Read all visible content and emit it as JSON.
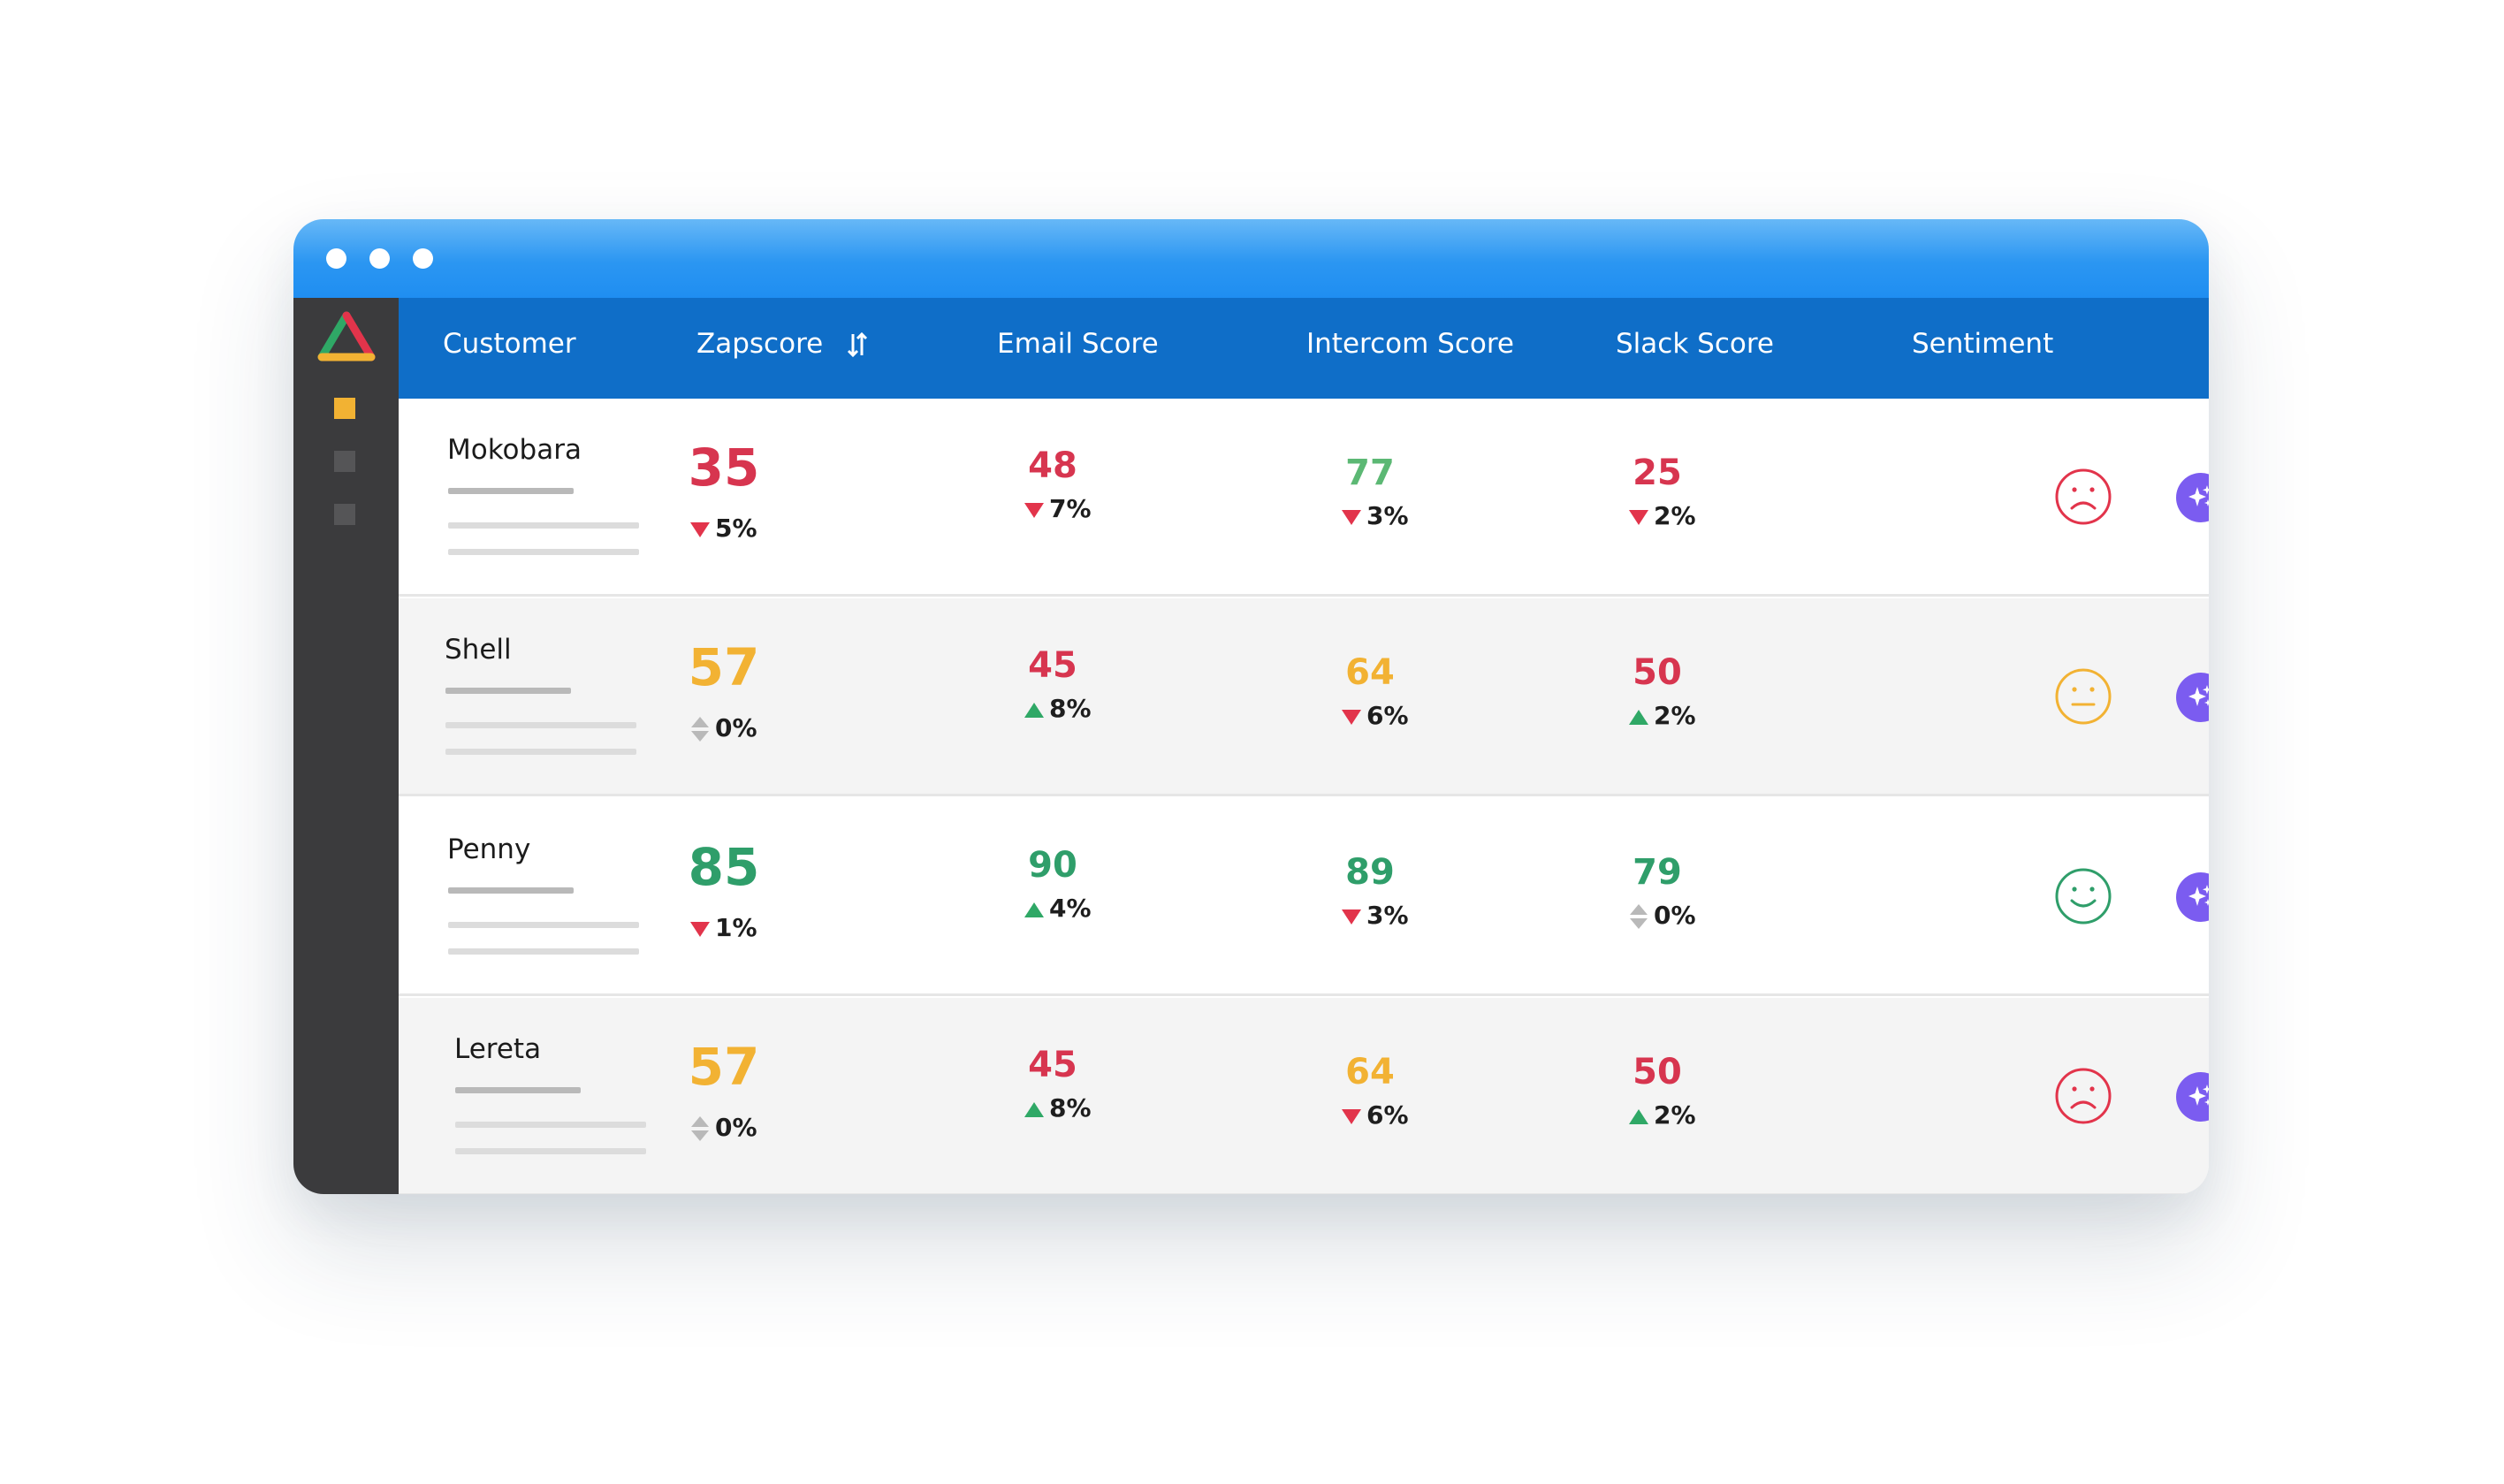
{
  "colors": {
    "red": "#d7354f",
    "orange": "#f2b233",
    "green": "#2f9e6a",
    "light_green": "#5cb874",
    "header_blue": "#0f6ec8",
    "purple": "#7b5cf0"
  },
  "header": {
    "customer": "Customer",
    "zapscore": "Zapscore",
    "email": "Email Score",
    "intercom": "Intercom Score",
    "slack": "Slack Score",
    "sentiment": "Sentiment"
  },
  "rows": [
    {
      "customer": "Mokobara",
      "zapscore": {
        "value": "35",
        "delta": "5%",
        "dir": "down",
        "color": "red"
      },
      "email": {
        "value": "48",
        "delta": "7%",
        "dir": "down",
        "color": "red"
      },
      "intercom": {
        "value": "77",
        "delta": "3%",
        "dir": "down",
        "color": "light_green"
      },
      "slack": {
        "value": "25",
        "delta": "2%",
        "dir": "down",
        "color": "red"
      },
      "sentiment": "sad-face-icon"
    },
    {
      "customer": "Shell",
      "zapscore": {
        "value": "57",
        "delta": "0%",
        "dir": "neutral",
        "color": "orange"
      },
      "email": {
        "value": "45",
        "delta": "8%",
        "dir": "up",
        "color": "red"
      },
      "intercom": {
        "value": "64",
        "delta": "6%",
        "dir": "down",
        "color": "orange"
      },
      "slack": {
        "value": "50",
        "delta": "2%",
        "dir": "up",
        "color": "red"
      },
      "sentiment": "neutral-face-icon"
    },
    {
      "customer": "Penny",
      "zapscore": {
        "value": "85",
        "delta": "1%",
        "dir": "down",
        "color": "green"
      },
      "email": {
        "value": "90",
        "delta": "4%",
        "dir": "up",
        "color": "green"
      },
      "intercom": {
        "value": "89",
        "delta": "3%",
        "dir": "down",
        "color": "green"
      },
      "slack": {
        "value": "79",
        "delta": "0%",
        "dir": "neutral",
        "color": "green"
      },
      "sentiment": "happy-face-icon"
    },
    {
      "customer": "Lereta",
      "zapscore": {
        "value": "57",
        "delta": "0%",
        "dir": "neutral",
        "color": "orange"
      },
      "email": {
        "value": "45",
        "delta": "8%",
        "dir": "up",
        "color": "red"
      },
      "intercom": {
        "value": "64",
        "delta": "6%",
        "dir": "down",
        "color": "orange"
      },
      "slack": {
        "value": "50",
        "delta": "2%",
        "dir": "up",
        "color": "red"
      },
      "sentiment": "sad-face-icon"
    }
  ]
}
